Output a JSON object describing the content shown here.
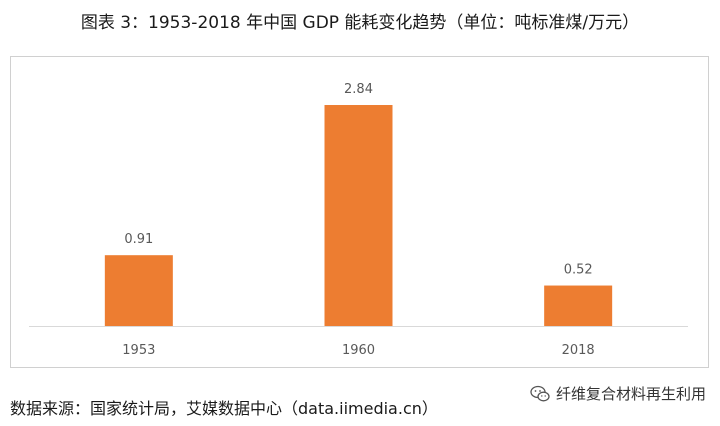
{
  "title": "图表 3：1953-2018 年中国 GDP 能耗变化趋势（单位：吨标准煤/万元）",
  "source": "数据来源：国家统计局，艾媒数据中心（data.iimedia.cn）",
  "watermark": {
    "text": "纤维复合材料再生利用",
    "icon": "wechat-icon"
  },
  "colors": {
    "bar": "#ED7D31",
    "label": "#595959",
    "axis": "#d9d9d9"
  },
  "chart_data": {
    "type": "bar",
    "categories": [
      "1953",
      "1960",
      "2018"
    ],
    "values": [
      0.91,
      2.84,
      0.52
    ],
    "data_labels": [
      "0.91",
      "2.84",
      "0.52"
    ],
    "title": "图表 3：1953-2018 年中国 GDP 能耗变化趋势（单位：吨标准煤/万元）",
    "xlabel": "",
    "ylabel": "",
    "ylim": [
      0,
      3.2
    ],
    "grid": false,
    "legend": "none"
  }
}
